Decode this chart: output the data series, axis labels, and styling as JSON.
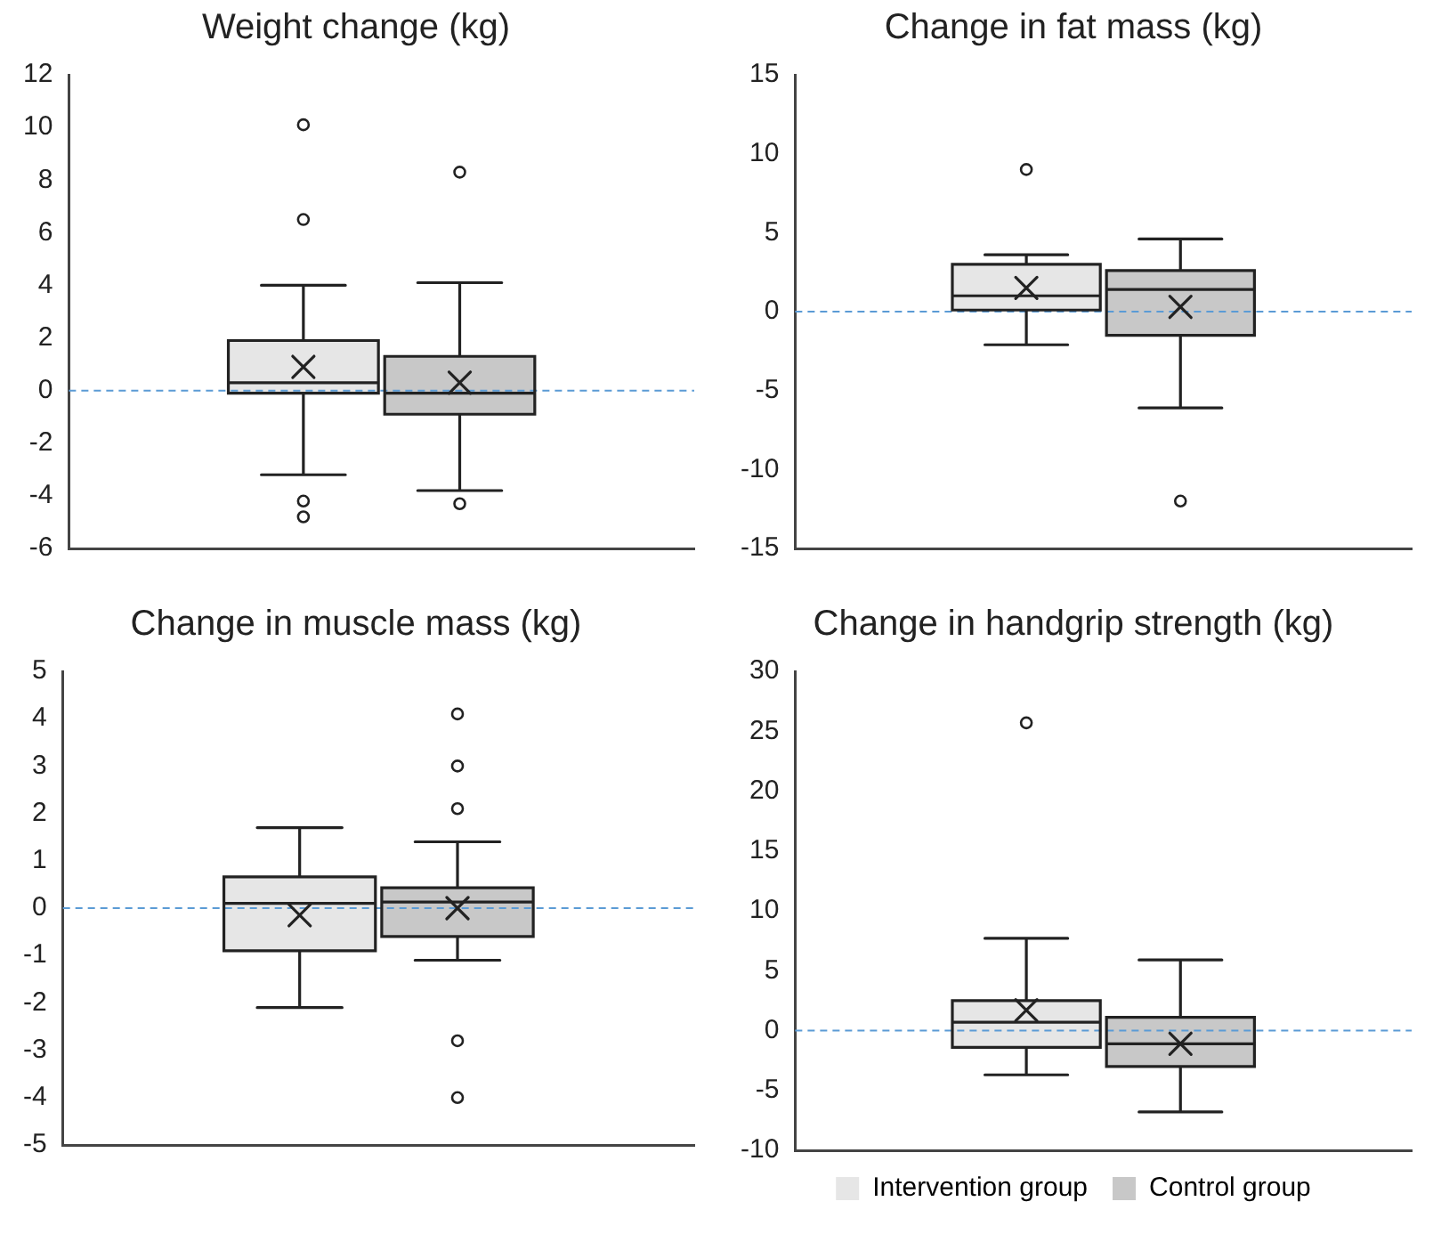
{
  "chart_data": [
    {
      "type": "box",
      "title": "Weight change (kg)",
      "categories": [
        null
      ],
      "ylim": [
        -6,
        12
      ],
      "yticks": [
        -6,
        -4,
        -2,
        0,
        2,
        4,
        6,
        8,
        10,
        12
      ],
      "tick_labels": "y",
      "grid": false,
      "legend": false,
      "ref_lines": [
        {
          "axis": "y",
          "value": 0,
          "color": "#5b9bd5",
          "line_style": "dashed"
        }
      ],
      "series": [
        {
          "color": "#e6e6e6",
          "boxes": [
            {
              "low": -3.2,
              "q1": -0.1,
              "median": 0.3,
              "q3": 1.9,
              "high": 4.0,
              "mean": 0.9,
              "outliers": [
                10.1,
                6.5,
                -4.2,
                -4.8
              ]
            }
          ]
        },
        {
          "color": "#c8c8c8",
          "boxes": [
            {
              "low": -3.8,
              "q1": -0.9,
              "median": -0.1,
              "q3": 1.3,
              "high": 4.1,
              "mean": 0.3,
              "outliers": [
                8.3,
                -4.3
              ]
            }
          ]
        }
      ]
    },
    {
      "type": "box",
      "title": "Change in fat mass (kg)",
      "categories": [
        null
      ],
      "ylim": [
        -15,
        15
      ],
      "yticks": [
        -15,
        -10,
        -5,
        0,
        5,
        10,
        15
      ],
      "tick_labels": "y",
      "grid": false,
      "legend": false,
      "ref_lines": [
        {
          "axis": "y",
          "value": 0,
          "color": "#5b9bd5",
          "line_style": "dashed"
        }
      ],
      "series": [
        {
          "color": "#e6e6e6",
          "boxes": [
            {
              "low": -2.1,
              "q1": 0.1,
              "median": 1.0,
              "q3": 3.0,
              "high": 3.6,
              "mean": 1.5,
              "outliers": [
                9.0
              ]
            }
          ]
        },
        {
          "color": "#c8c8c8",
          "boxes": [
            {
              "low": -6.1,
              "q1": -1.5,
              "median": 1.4,
              "q3": 2.6,
              "high": 4.6,
              "mean": 0.3,
              "outliers": [
                -12.0
              ]
            }
          ]
        }
      ]
    },
    {
      "type": "box",
      "title": "Change in muscle mass (kg)",
      "categories": [
        null
      ],
      "ylim": [
        -5,
        5
      ],
      "yticks": [
        -5,
        -4,
        -3,
        -2,
        -1,
        0,
        1,
        2,
        3,
        4,
        5
      ],
      "tick_labels": "y",
      "grid": false,
      "legend": false,
      "ref_lines": [
        {
          "axis": "y",
          "value": 0,
          "color": "#5b9bd5",
          "line_style": "dashed"
        }
      ],
      "series": [
        {
          "color": "#e6e6e6",
          "boxes": [
            {
              "low": -2.1,
              "q1": -0.9,
              "median": 0.1,
              "q3": 0.66,
              "high": 1.7,
              "mean": -0.15
            }
          ]
        },
        {
          "color": "#c8c8c8",
          "boxes": [
            {
              "low": -1.1,
              "q1": -0.6,
              "median": 0.13,
              "q3": 0.43,
              "high": 1.4,
              "mean": 0.0,
              "outliers": [
                4.1,
                3.0,
                2.1,
                -2.8,
                -4.0
              ]
            }
          ]
        }
      ]
    },
    {
      "type": "box",
      "title": "Change in handgrip strength (kg)",
      "categories": [
        null
      ],
      "ylim": [
        -10,
        30
      ],
      "yticks": [
        -10,
        -5,
        0,
        5,
        10,
        15,
        20,
        25,
        30
      ],
      "tick_labels": "y",
      "grid": false,
      "legend": "bottom",
      "ref_lines": [
        {
          "axis": "y",
          "value": 0,
          "color": "#5b9bd5",
          "line_style": "dashed"
        }
      ],
      "series": [
        {
          "name": "Intervention group",
          "color": "#e6e6e6",
          "boxes": [
            {
              "low": -3.7,
              "q1": -1.4,
              "median": 0.7,
              "q3": 2.5,
              "high": 7.7,
              "mean": 1.7,
              "outliers": [
                25.7
              ]
            }
          ]
        },
        {
          "name": "Control group",
          "color": "#c8c8c8",
          "boxes": [
            {
              "low": -6.8,
              "q1": -3.0,
              "median": -1.1,
              "q3": 1.1,
              "high": 5.9,
              "mean": -1.1
            }
          ]
        }
      ]
    }
  ]
}
